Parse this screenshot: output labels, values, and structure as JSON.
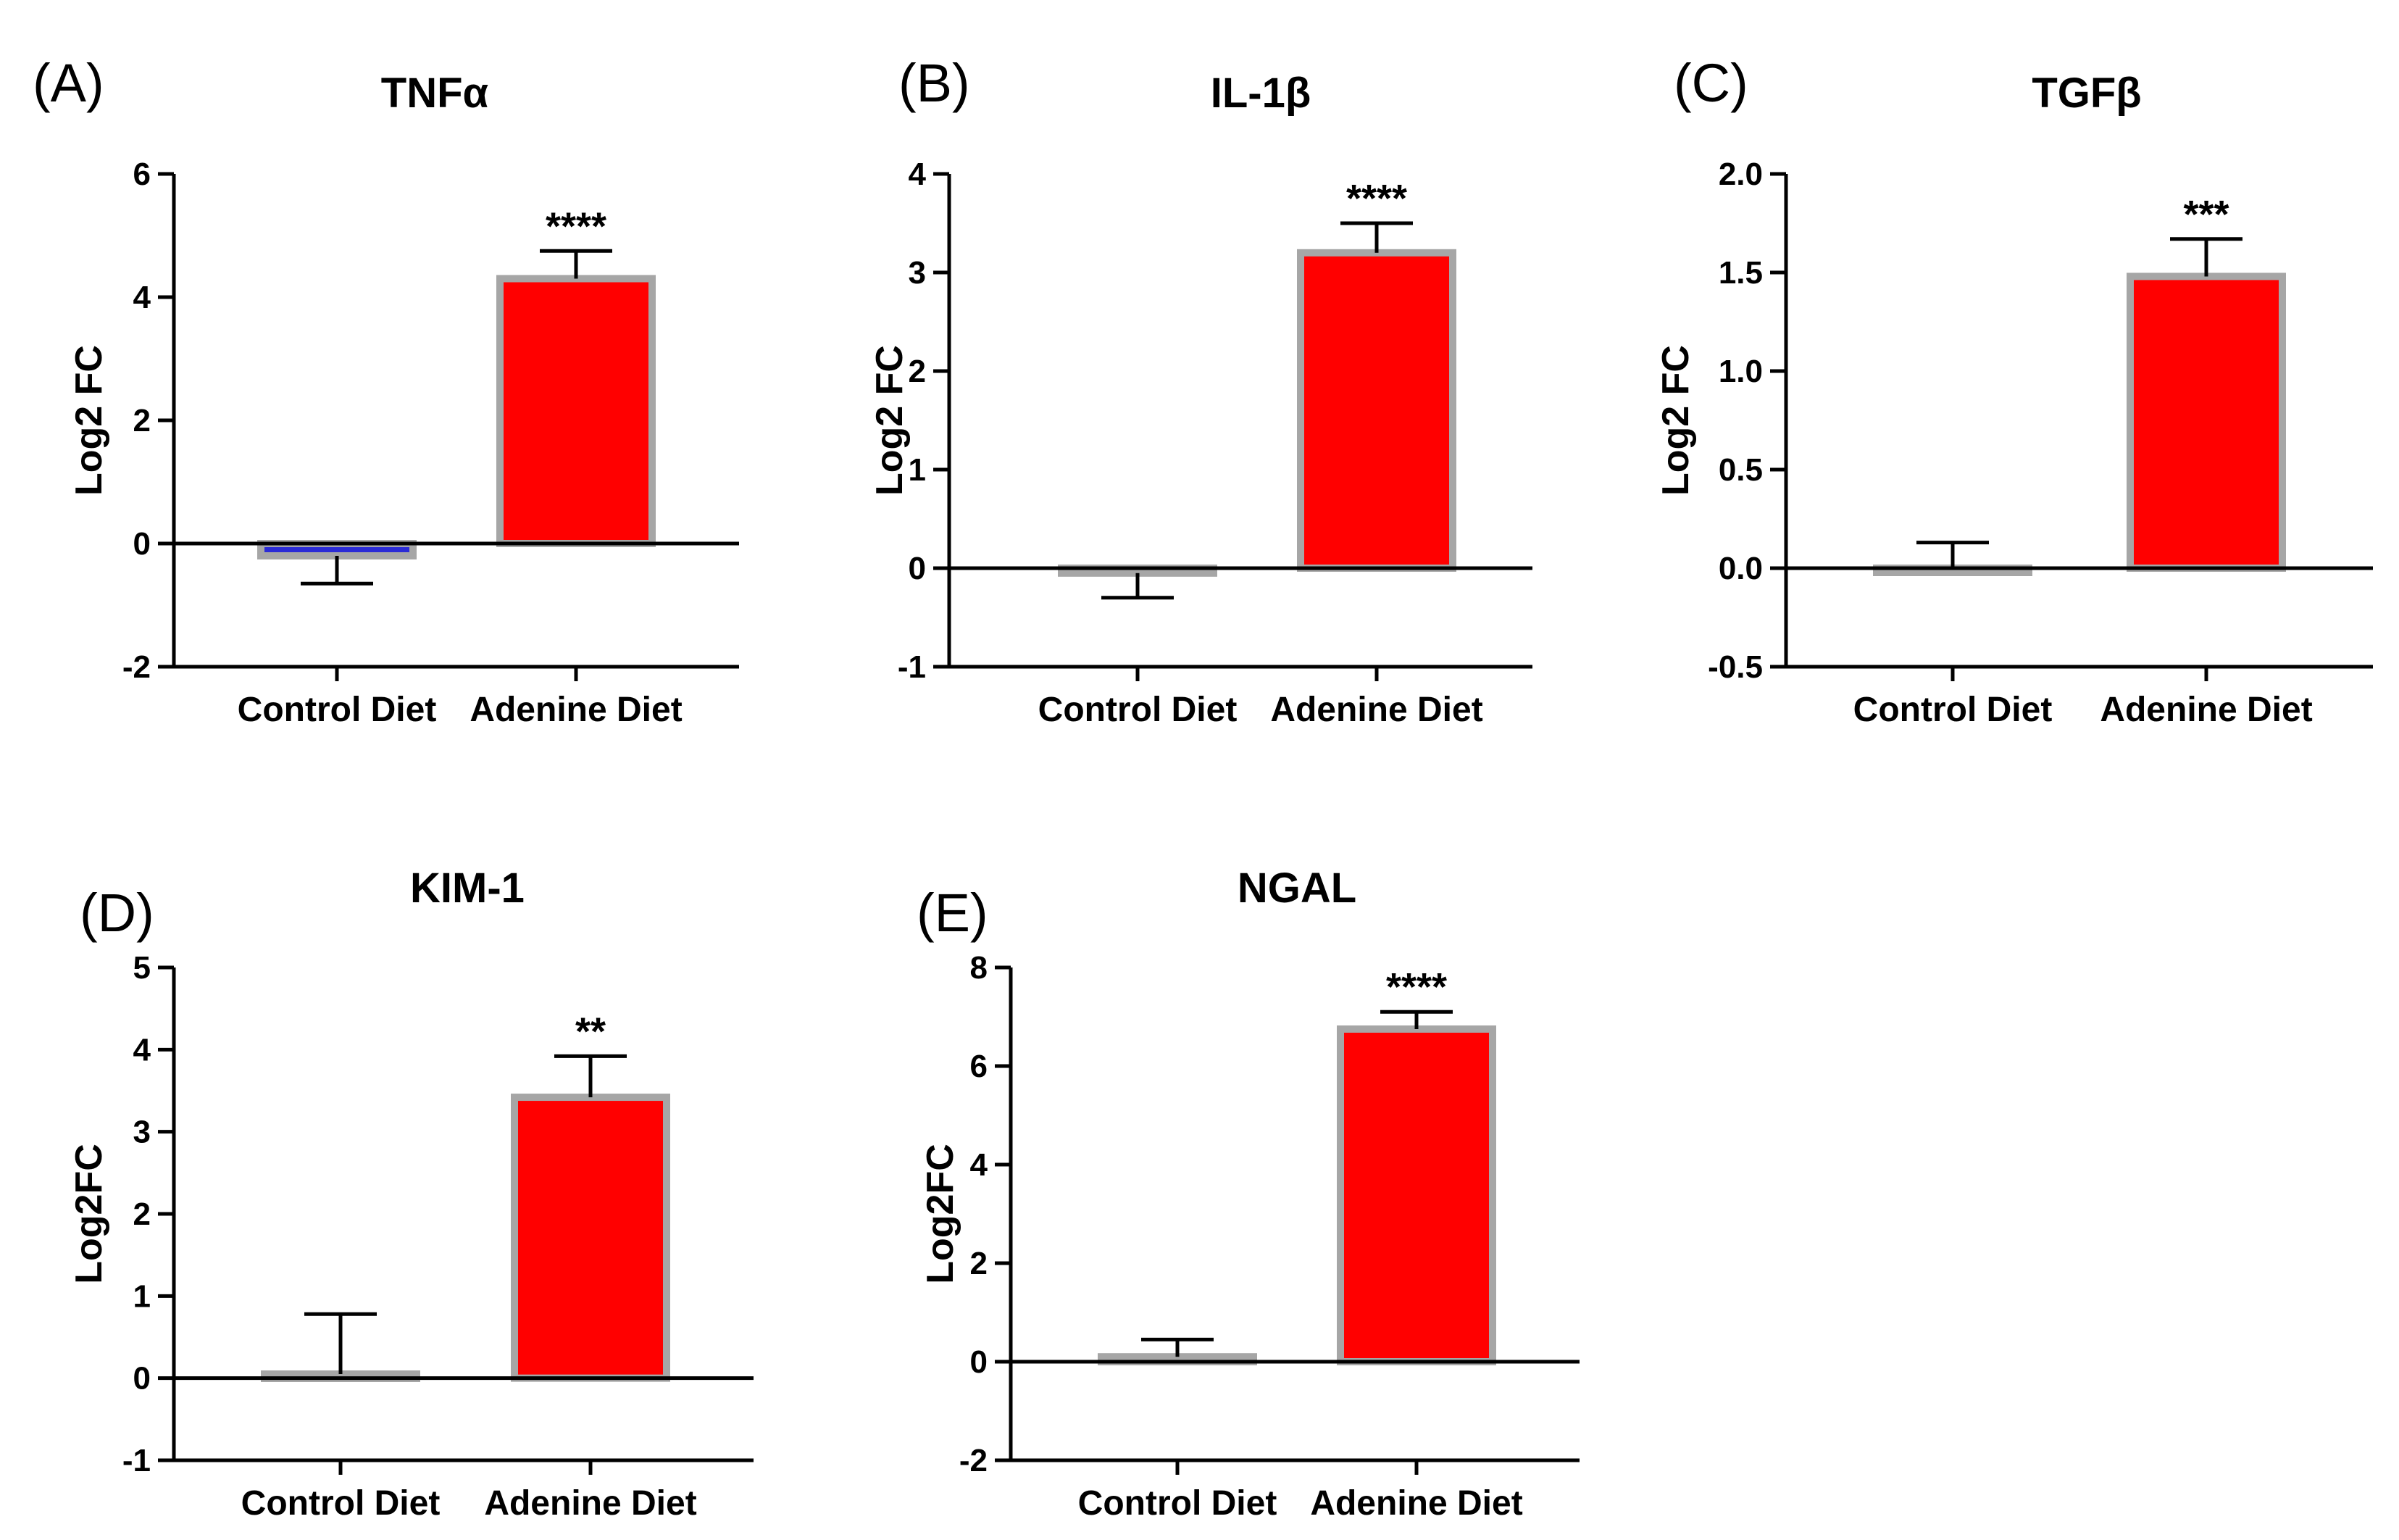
{
  "figure": {
    "panels": [
      {
        "letter": "(A)",
        "title": "TNFα",
        "ylabel": "Log2  FC",
        "yticks": [
          "-2",
          "0",
          "2",
          "4",
          "6"
        ]
      },
      {
        "letter": "(B)",
        "title": "IL-1β",
        "ylabel": "Log2  FC",
        "yticks": [
          "-1",
          "0",
          "1",
          "2",
          "3",
          "4"
        ]
      },
      {
        "letter": "(C)",
        "title": "TGFβ",
        "ylabel": "Log2  FC",
        "yticks": [
          "-0.5",
          "0.0",
          "0.5",
          "1.0",
          "1.5",
          "2.0"
        ]
      },
      {
        "letter": "(D)",
        "title": "KIM-1",
        "ylabel": "Log2FC",
        "yticks": [
          "-1",
          "0",
          "1",
          "2",
          "3",
          "4",
          "5"
        ]
      },
      {
        "letter": "(E)",
        "title": "NGAL",
        "ylabel": "Log2FC",
        "yticks": [
          "-2",
          "0",
          "2",
          "4",
          "6",
          "8"
        ]
      }
    ]
  },
  "colors": {
    "control_bar": "#2b2bd6",
    "adenine_bar": "#ff0000",
    "bar_border": "#a6a6a6",
    "axis": "#000000"
  },
  "chart_data": [
    {
      "type": "bar",
      "title": "TNFα",
      "ylabel": "Log2  FC",
      "xlabel": "",
      "categories": [
        "Control Diet",
        "Adenine Diet"
      ],
      "values": [
        -0.2,
        4.3
      ],
      "errors": [
        0.45,
        0.45
      ],
      "significance": [
        "",
        "****"
      ],
      "ylim": [
        -2,
        6
      ],
      "yticks": [
        -2,
        0,
        2,
        4,
        6
      ]
    },
    {
      "type": "bar",
      "title": "IL-1β",
      "ylabel": "Log2  FC",
      "xlabel": "",
      "categories": [
        "Control Diet",
        "Adenine Diet"
      ],
      "values": [
        -0.05,
        3.2
      ],
      "errors": [
        0.25,
        0.3
      ],
      "significance": [
        "",
        "****"
      ],
      "ylim": [
        -1,
        4
      ],
      "yticks": [
        -1,
        0,
        1,
        2,
        3,
        4
      ]
    },
    {
      "type": "bar",
      "title": "TGFβ",
      "ylabel": "Log2  FC",
      "xlabel": "",
      "categories": [
        "Control Diet",
        "Adenine Diet"
      ],
      "values": [
        0.0,
        1.48
      ],
      "errors": [
        0.13,
        0.19
      ],
      "significance": [
        "",
        "***"
      ],
      "ylim": [
        -0.5,
        2.0
      ],
      "yticks": [
        -0.5,
        0.0,
        0.5,
        1.0,
        1.5,
        2.0
      ]
    },
    {
      "type": "bar",
      "title": "KIM-1",
      "ylabel": "Log2FC",
      "xlabel": "",
      "categories": [
        "Control Diet",
        "Adenine Diet"
      ],
      "values": [
        0.05,
        3.42
      ],
      "errors": [
        0.73,
        0.5
      ],
      "significance": [
        "",
        "**"
      ],
      "ylim": [
        -1,
        5
      ],
      "yticks": [
        -1,
        0,
        1,
        2,
        3,
        4,
        5
      ]
    },
    {
      "type": "bar",
      "title": "NGAL",
      "ylabel": "Log2FC",
      "xlabel": "",
      "categories": [
        "Control Diet",
        "Adenine Diet"
      ],
      "values": [
        0.1,
        6.75
      ],
      "errors": [
        0.35,
        0.35
      ],
      "significance": [
        "",
        "****"
      ],
      "ylim": [
        -2,
        8
      ],
      "yticks": [
        -2,
        0,
        2,
        4,
        6,
        8
      ]
    }
  ]
}
